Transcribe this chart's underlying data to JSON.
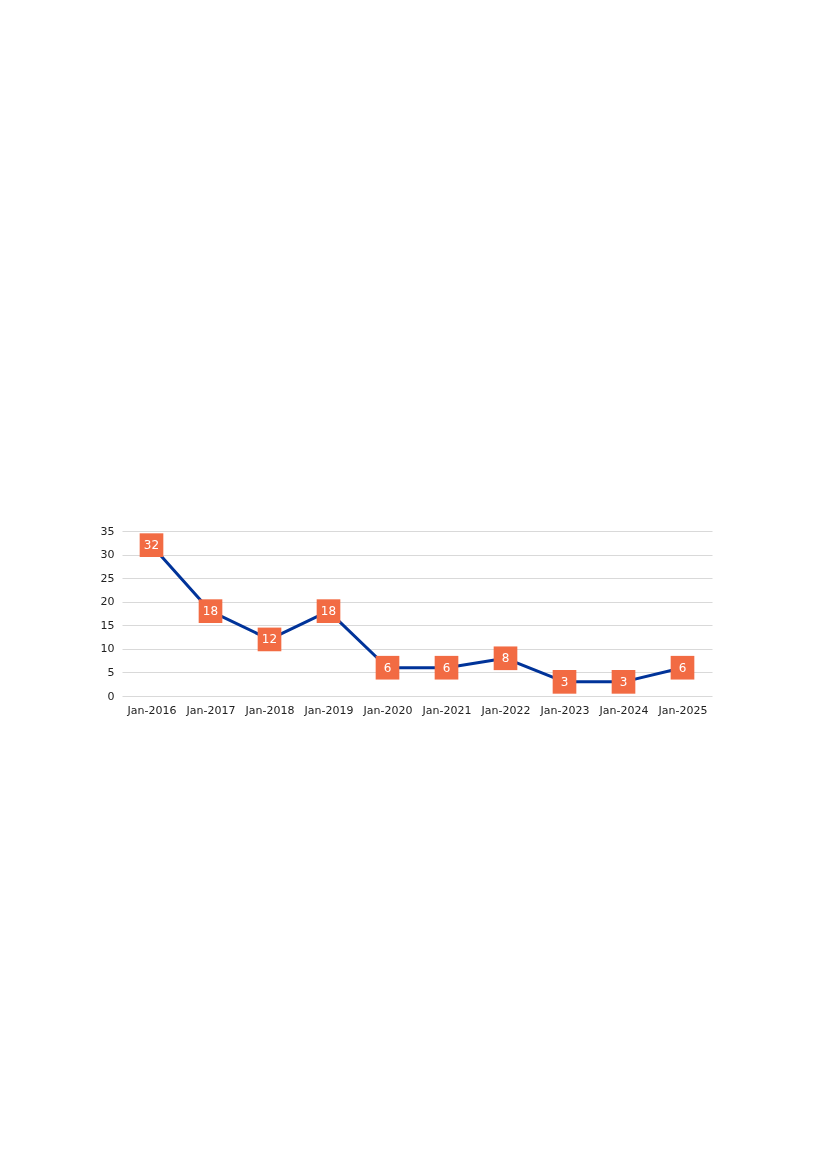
{
  "chart_data": {
    "type": "line",
    "categories": [
      "Jan-2016",
      "Jan-2017",
      "Jan-2018",
      "Jan-2019",
      "Jan-2020",
      "Jan-2021",
      "Jan-2022",
      "Jan-2023",
      "Jan-2024",
      "Jan-2025"
    ],
    "series": [
      {
        "color": "#003399",
        "values": [
          32,
          18,
          12,
          18,
          6,
          6,
          8,
          3,
          3,
          6
        ]
      }
    ],
    "ylim": [
      0,
      35
    ],
    "yticks": [
      0,
      5,
      10,
      15,
      20,
      25,
      30,
      35
    ],
    "grid": "y",
    "data_labels": true,
    "marker": "square",
    "line_style": "solid"
  }
}
